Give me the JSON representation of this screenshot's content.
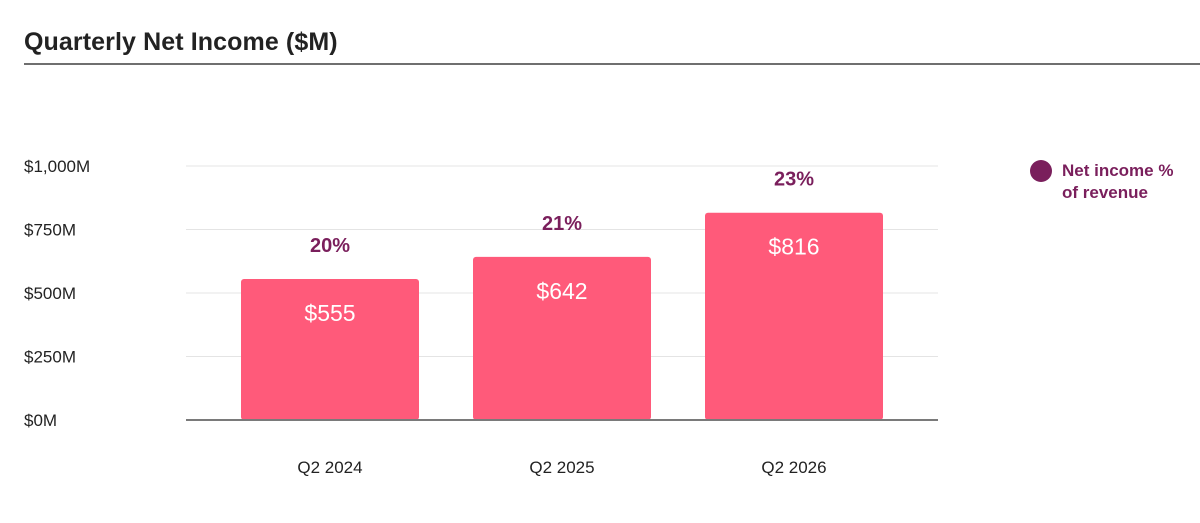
{
  "title": "Quarterly Net Income ($M)",
  "legend": {
    "label": "Net income % of revenue"
  },
  "colors": {
    "bar": "#ff5a7a",
    "accent": "#7a1f5c",
    "grid": "#e4e4e4",
    "axis": "#7a7a7a",
    "text": "#222222"
  },
  "chart_data": {
    "type": "bar",
    "title": "Quarterly Net Income ($M)",
    "xlabel": "",
    "ylabel": "",
    "categories": [
      "Q2 2024",
      "Q2 2025",
      "Q2 2026"
    ],
    "values": [
      555,
      642,
      816
    ],
    "value_labels": [
      "$555",
      "$642",
      "$816"
    ],
    "secondary_series": {
      "name": "Net income % of revenue",
      "values": [
        20,
        21,
        23
      ],
      "labels": [
        "20%",
        "21%",
        "23%"
      ]
    },
    "ylim": [
      0,
      1000
    ],
    "yticks": [
      0,
      250,
      500,
      750,
      1000
    ],
    "ytick_labels": [
      "$0M",
      "$250M",
      "$500M",
      "$750M",
      "$1,000M"
    ],
    "grid": true,
    "legend_position": "right"
  }
}
